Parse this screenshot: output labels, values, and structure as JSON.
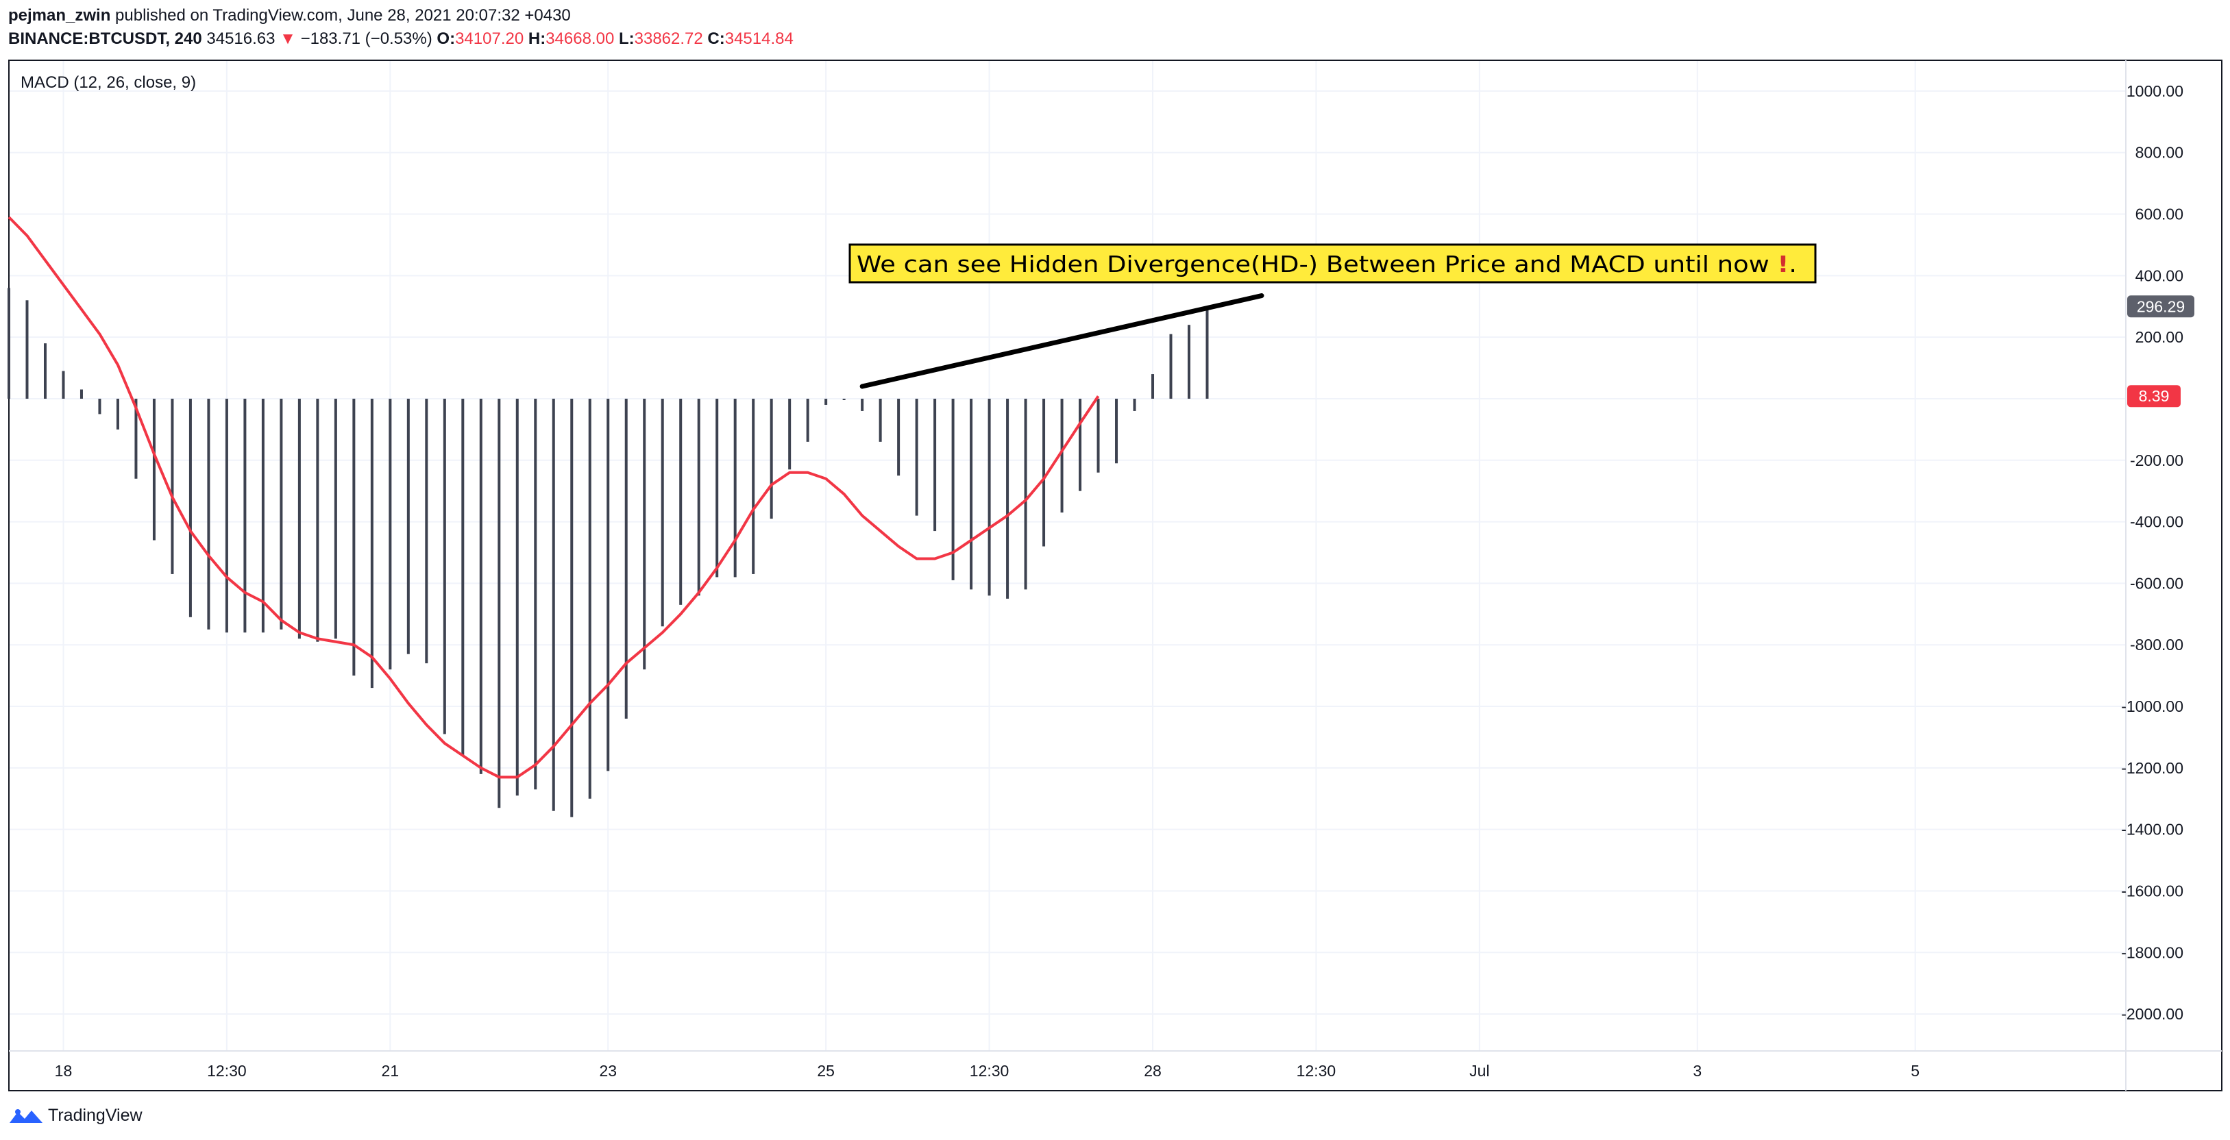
{
  "header": {
    "username": "pejman_zwin",
    "published": "published on TradingView.com, June 28, 2021 20:07:32 +0430",
    "symbol": "BINANCE:BTCUSDT, 240",
    "price": "34516.63",
    "change": "−183.71 (−0.53%)",
    "o_label": "O:",
    "o_value": "34107.20",
    "h_label": "H:",
    "h_value": "34668.00",
    "l_label": "L:",
    "l_value": "33862.72",
    "c_label": "C:",
    "c_value": "34514.84"
  },
  "indicator_label": "MACD (12, 26, close, 9)",
  "annotation": {
    "text": "We can see Hidden Divergence(HD-) Between Price and MACD until now ",
    "suffix": "."
  },
  "footer": {
    "brand": "TradingView"
  },
  "colors": {
    "signal": "#f23645",
    "histogram": "#3d4250",
    "annotation_bg": "#ffeb3b",
    "trendline": "#000000",
    "grid": "#f0f3fa",
    "axis_text": "#131722",
    "hist_badge": "#5d606b",
    "signal_badge": "#f23645"
  },
  "chart_data": {
    "type": "bar",
    "title": "MACD (12, 26, close, 9)",
    "y_ticks": [
      "1000.00",
      "800.00",
      "600.00",
      "400.00",
      "200.00",
      "-200.00",
      "-400.00",
      "-600.00",
      "-800.00",
      "-1000.00",
      "-1200.00",
      "-1400.00",
      "-1600.00",
      "-1800.00",
      "-2000.00"
    ],
    "y_tick_values": [
      1000,
      800,
      600,
      400,
      200,
      -200,
      -400,
      -600,
      -800,
      -1000,
      -1200,
      -1400,
      -1600,
      -1800,
      -2000
    ],
    "ylim": [
      -2120,
      1100
    ],
    "x_ticks": [
      {
        "label": "18",
        "i": 3
      },
      {
        "label": "12:30",
        "i": 12
      },
      {
        "label": "21",
        "i": 21
      },
      {
        "label": "23",
        "i": 33
      },
      {
        "label": "25",
        "i": 45
      },
      {
        "label": "12:30",
        "i": 54
      },
      {
        "label": "28",
        "i": 63
      },
      {
        "label": "12:30",
        "i": 72
      },
      {
        "label": "Jul",
        "i": 81
      },
      {
        "label": "3",
        "i": 93
      },
      {
        "label": "5",
        "i": 105
      }
    ],
    "x_range": [
      0,
      116.6
    ],
    "series": [
      {
        "name": "Histogram",
        "type": "histogram",
        "values": [
          360,
          320,
          180,
          90,
          30,
          -50,
          -100,
          -260,
          -460,
          -570,
          -710,
          -750,
          -760,
          -760,
          -760,
          -750,
          -780,
          -790,
          -780,
          -900,
          -940,
          -880,
          -830,
          -860,
          -1090,
          -1160,
          -1220,
          -1330,
          -1290,
          -1270,
          -1340,
          -1360,
          -1300,
          -1210,
          -1040,
          -880,
          -740,
          -670,
          -640,
          -580,
          -580,
          -570,
          -390,
          -230,
          -140,
          -20,
          0,
          -40,
          -140,
          -250,
          -380,
          -430,
          -590,
          -620,
          -640,
          -650,
          -620,
          -480,
          -370,
          -300,
          -240,
          -210,
          -40,
          80,
          210,
          240,
          300
        ]
      },
      {
        "name": "Signal",
        "type": "line",
        "values": [
          590,
          530,
          450,
          370,
          290,
          210,
          110,
          -30,
          -180,
          -320,
          -430,
          -510,
          -580,
          -630,
          -660,
          -720,
          -760,
          -780,
          -790,
          -800,
          -840,
          -910,
          -990,
          -1060,
          -1120,
          -1160,
          -1200,
          -1230,
          -1230,
          -1190,
          -1130,
          -1060,
          -990,
          -930,
          -860,
          -810,
          -760,
          -700,
          -630,
          -550,
          -460,
          -360,
          -280,
          -240,
          -240,
          -260,
          -310,
          -380,
          -430,
          -480,
          -520,
          -520,
          -500,
          -460,
          -420,
          -380,
          -330,
          -260,
          -170,
          -80,
          8.39
        ]
      }
    ],
    "last_values": {
      "histogram": "296.29",
      "signal": "8.39"
    },
    "trendline": {
      "from": {
        "i": 47,
        "value": 40
      },
      "to": {
        "i": 69,
        "value": 335
      }
    },
    "grid": true
  }
}
